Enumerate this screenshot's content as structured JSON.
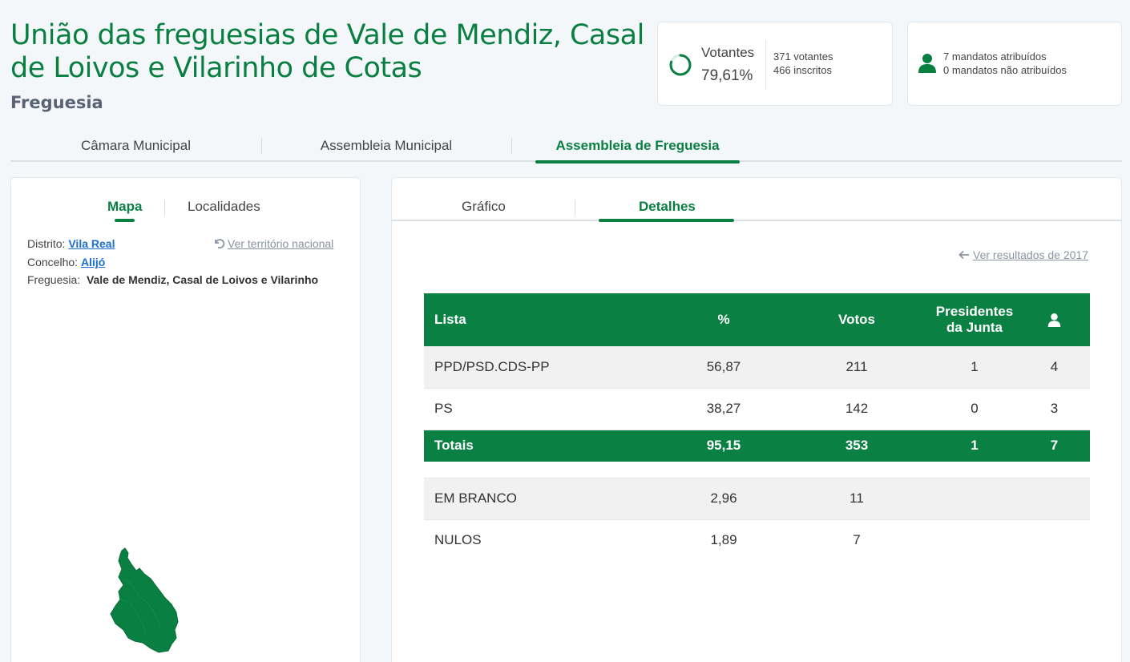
{
  "header": {
    "title": "União das freguesias de Vale de Mendiz, Casal de Loivos e Vilarinho de Cotas",
    "subtitle": "Freguesia"
  },
  "votantes": {
    "label": "Votantes",
    "pct": "79,61%",
    "pct_value": 79.61,
    "votantes": "371 votantes",
    "inscritos": "466 inscritos"
  },
  "mandatos": {
    "atribuidos": "7 mandatos atribuídos",
    "nao_atribuidos": "0 mandatos não atribuídos"
  },
  "main_tabs": [
    "Câmara Municipal",
    "Assembleia Municipal",
    "Assembleia de Freguesia"
  ],
  "left": {
    "tabs": [
      "Mapa",
      "Localidades"
    ],
    "distrito_label": "Distrito:",
    "distrito": "Vila Real",
    "concelho_label": "Concelho:",
    "concelho": "Alijó",
    "freguesia_label": "Freguesia:",
    "freguesia": "Vale de Mendiz, Casal de Loivos e Vilarinho",
    "national_link": "Ver território nacional"
  },
  "right": {
    "tabs": [
      "Gráfico",
      "Detalhes"
    ],
    "prev_link": "Ver resultados de 2017"
  },
  "table": {
    "headers": {
      "lista": "Lista",
      "pct": "%",
      "votos": "Votos",
      "presidentes_1": "Presidentes",
      "presidentes_2": "da Junta"
    },
    "rows": [
      {
        "lista": "PPD/PSD.CDS-PP",
        "pct": "56,87",
        "votos": "211",
        "pres": "1",
        "mand": "4"
      },
      {
        "lista": "PS",
        "pct": "38,27",
        "votos": "142",
        "pres": "0",
        "mand": "3"
      }
    ],
    "totals": {
      "lista": "Totais",
      "pct": "95,15",
      "votos": "353",
      "pres": "1",
      "mand": "7"
    },
    "extra": [
      {
        "lista": "EM BRANCO",
        "pct": "2,96",
        "votos": "11"
      },
      {
        "lista": "NULOS",
        "pct": "1,89",
        "votos": "7"
      }
    ]
  },
  "colors": {
    "accent": "#0a7f42",
    "link": "#1a6fd1"
  },
  "icons": {
    "ring": "progress-ring-icon",
    "user": "user-icon",
    "undo": "undo-icon",
    "arrow": "arrow-left-icon"
  }
}
